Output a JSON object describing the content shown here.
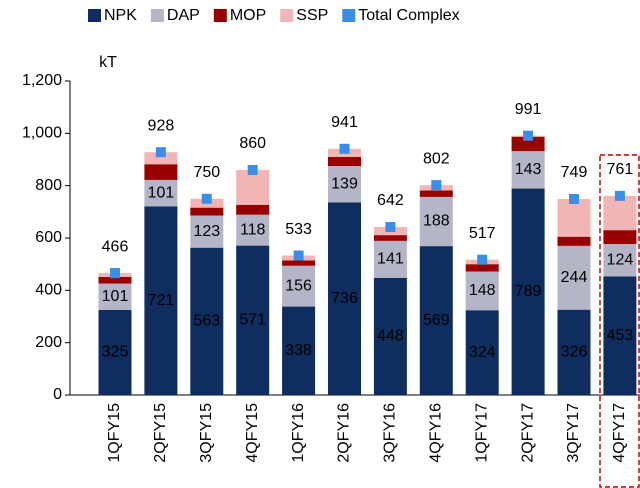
{
  "chart_data": {
    "type": "bar",
    "stacked": true,
    "y_label": "kT",
    "categories": [
      "1QFY15",
      "2QFY15",
      "3QFY15",
      "4QFY15",
      "1QFY16",
      "2QFY16",
      "3QFY16",
      "4QFY16",
      "1QFY17",
      "2QFY17",
      "3QFY17",
      "4QFY17"
    ],
    "series": [
      {
        "name": "NPK",
        "color": "#0f2d5f",
        "show_labels": true,
        "values": [
          325,
          721,
          563,
          571,
          338,
          736,
          448,
          569,
          324,
          789,
          326,
          453
        ]
      },
      {
        "name": "DAP",
        "color": "#b4b6c8",
        "show_labels": true,
        "values": [
          101,
          101,
          123,
          118,
          156,
          139,
          141,
          188,
          148,
          143,
          244,
          124
        ]
      },
      {
        "name": "MOP",
        "color": "#990000",
        "values": [
          25,
          60,
          30,
          38,
          20,
          35,
          22,
          25,
          28,
          55,
          35,
          53
        ]
      },
      {
        "name": "SSP",
        "color": "#f2b5b5",
        "values": [
          15,
          46,
          34,
          133,
          19,
          31,
          31,
          20,
          17,
          4,
          144,
          131
        ]
      },
      {
        "name": "Total Complex",
        "type": "scatter",
        "color": "#3b8ee8",
        "show_labels": true,
        "values": [
          466,
          928,
          750,
          860,
          533,
          941,
          642,
          802,
          517,
          991,
          749,
          761
        ]
      }
    ],
    "ylim": [
      0,
      1200
    ],
    "yticks": [
      0,
      200,
      400,
      600,
      800,
      {
        "value": 1000,
        "label": "1,000"
      },
      {
        "value": 1200,
        "label": "1,200"
      }
    ],
    "legend": "top"
  }
}
